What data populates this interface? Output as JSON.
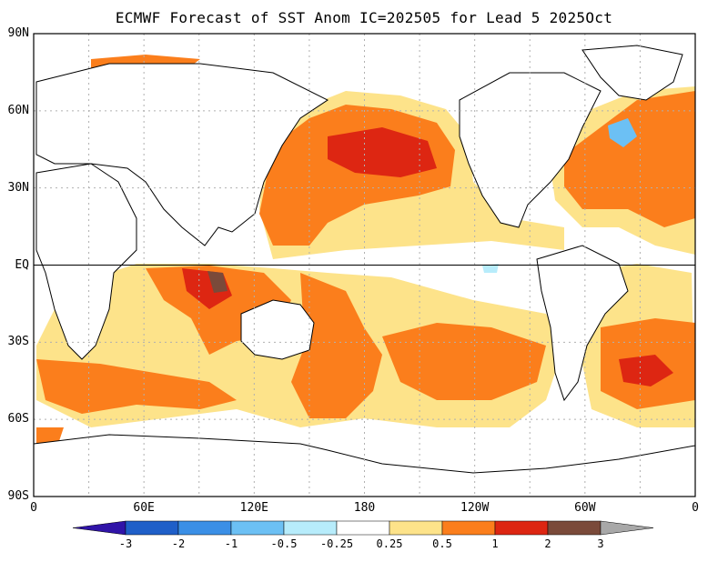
{
  "title": "ECMWF Forecast of SST Anom IC=202505 for Lead 5 2025Oct",
  "lat_axis_labels": [
    "90N",
    "60N",
    "30N",
    "EQ",
    "30S",
    "60S",
    "90S"
  ],
  "lon_axis_labels": [
    "0",
    "60E",
    "120E",
    "180",
    "120W",
    "60W",
    "0"
  ],
  "colorbar": {
    "labels": [
      "-3",
      "-2",
      "-1",
      "-0.5",
      "-0.25",
      "0.25",
      "0.5",
      "1",
      "2",
      "3"
    ],
    "colors": {
      "below_-3": "#3014a8",
      "-3_to_-2": "#1f5fc8",
      "-2_to_-1": "#3b8fe6",
      "-1_to_-0.5": "#6cc0f4",
      "-0.5_to_-0.25": "#b7ecfb",
      "-0.25_to_0.25": "#ffffff",
      "0.25_to_0.5": "#fde38a",
      "0.5_to_1": "#fb7e1c",
      "1_to_2": "#dd2612",
      "2_to_3": "#7a4a3a",
      "above_3": "#a8a8a8"
    }
  },
  "map": {
    "projection": "cylindrical equidistant",
    "lon_range": [
      0,
      360
    ],
    "lat_range": [
      -90,
      90
    ],
    "grid": true,
    "equator_line": true
  }
}
